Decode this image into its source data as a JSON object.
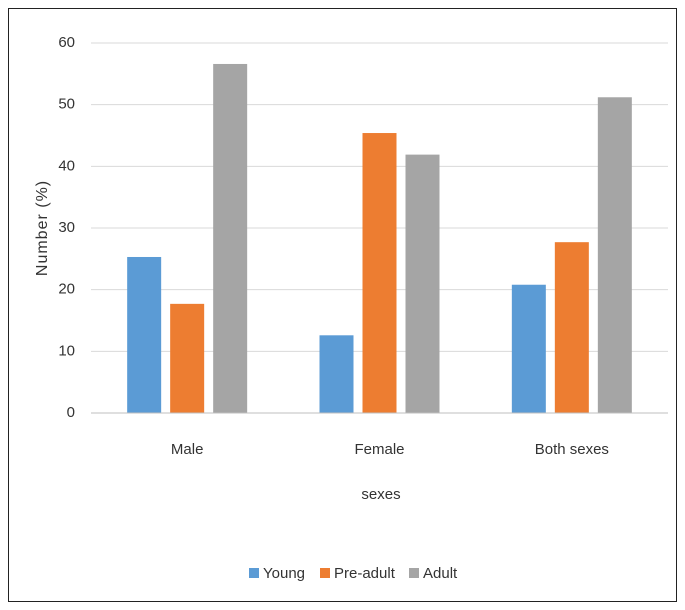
{
  "chart_data": {
    "type": "bar",
    "categories": [
      "Male",
      "Female",
      "Both sexes"
    ],
    "series": [
      {
        "name": "Young",
        "values": [
          25.3,
          12.6,
          20.8
        ],
        "color": "#5b9bd5"
      },
      {
        "name": "Pre-adult",
        "values": [
          17.7,
          45.4,
          27.7
        ],
        "color": "#ed7d31"
      },
      {
        "name": "Adult",
        "values": [
          56.6,
          41.9,
          51.2
        ],
        "color": "#a5a5a5"
      }
    ],
    "xlabel": "sexes",
    "ylabel": "Number (%)",
    "ylim": [
      0,
      60
    ],
    "y_ticks": [
      0,
      10,
      20,
      30,
      40,
      50,
      60
    ],
    "grid": true,
    "legend_position": "bottom"
  }
}
